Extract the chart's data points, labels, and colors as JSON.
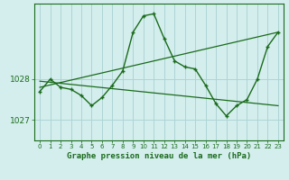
{
  "hours": [
    0,
    1,
    2,
    3,
    4,
    5,
    6,
    7,
    8,
    9,
    10,
    11,
    12,
    13,
    14,
    15,
    16,
    17,
    18,
    19,
    20,
    21,
    22,
    23
  ],
  "pressure_main": [
    1027.7,
    1028.0,
    1027.8,
    1027.75,
    1027.6,
    1027.35,
    1027.55,
    1027.85,
    1028.2,
    1029.15,
    1029.55,
    1029.6,
    1029.0,
    1028.45,
    1028.3,
    1028.25,
    1027.85,
    1027.4,
    1027.1,
    1027.35,
    1027.5,
    1028.0,
    1028.8,
    1029.15
  ],
  "smooth_line1_x": [
    0,
    23
  ],
  "smooth_line1_y": [
    1027.8,
    1029.15
  ],
  "smooth_line2_x": [
    0,
    23
  ],
  "smooth_line2_y": [
    1027.95,
    1027.35
  ],
  "line_color": "#1a6b1a",
  "bg_color": "#d4eeee",
  "grid_color": "#aed4d4",
  "text_color": "#1a6b1a",
  "xlabel": "Graphe pression niveau de la mer (hPa)",
  "ytick_labels": [
    "1027",
    "1028"
  ],
  "ytick_vals": [
    1027.0,
    1028.0
  ],
  "ylim": [
    1026.55,
    1029.85
  ],
  "xlim": [
    -0.5,
    23.5
  ]
}
